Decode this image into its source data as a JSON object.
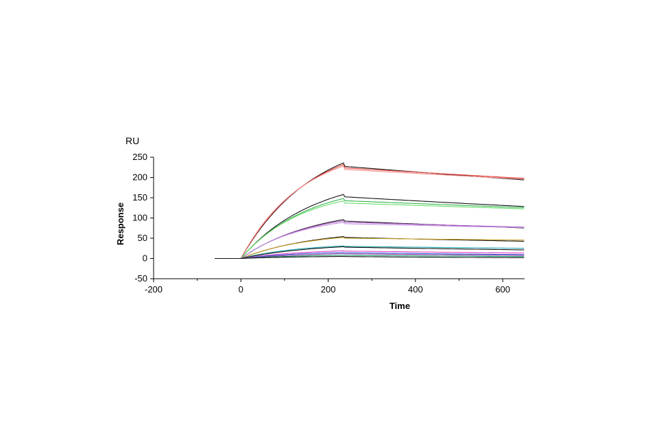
{
  "chart_data": {
    "type": "line",
    "unit_label": "RU",
    "xlabel": "Time",
    "ylabel": "Response",
    "xlim": [
      -200,
      650
    ],
    "ylim": [
      -50,
      250
    ],
    "x_ticks": [
      -200,
      0,
      200,
      400,
      600
    ],
    "y_ticks": [
      -50,
      0,
      50,
      100,
      150,
      200,
      250
    ],
    "x_minor_step": 100,
    "grid": false,
    "legend": "none",
    "association_start": 0,
    "dissociation_start": 235,
    "baseline_start": -60,
    "end_time": 650,
    "series": [
      {
        "peak": 236,
        "end": 201,
        "color": "#111111"
      },
      {
        "peak": 232,
        "end": 205,
        "color": "#e8463c"
      },
      {
        "peak": 228,
        "end": 203,
        "color": "#f08a8a"
      },
      {
        "peak": 158,
        "end": 133,
        "color": "#111111"
      },
      {
        "peak": 148,
        "end": 130,
        "color": "#2fb34a"
      },
      {
        "peak": 142,
        "end": 127,
        "color": "#66dd66"
      },
      {
        "peak": 96,
        "end": 78,
        "color": "#222222"
      },
      {
        "peak": 93,
        "end": 80,
        "color": "#a64fc2"
      },
      {
        "peak": 89,
        "end": 79,
        "color": "#c090e0"
      },
      {
        "peak": 54,
        "end": 44,
        "color": "#111111"
      },
      {
        "peak": 52,
        "end": 47,
        "color": "#c9a020"
      },
      {
        "peak": 31,
        "end": 26,
        "color": "#20a8b0"
      },
      {
        "peak": 29,
        "end": 22,
        "color": "#111111"
      },
      {
        "peak": 19,
        "end": 14,
        "color": "#e040c0"
      },
      {
        "peak": 15,
        "end": 10,
        "color": "#4060e0"
      },
      {
        "peak": 12,
        "end": 8,
        "color": "#8a3aa0"
      },
      {
        "peak": 8,
        "end": 5,
        "color": "#1a9a6a"
      },
      {
        "peak": 5,
        "end": 2,
        "color": "#111111"
      }
    ]
  }
}
